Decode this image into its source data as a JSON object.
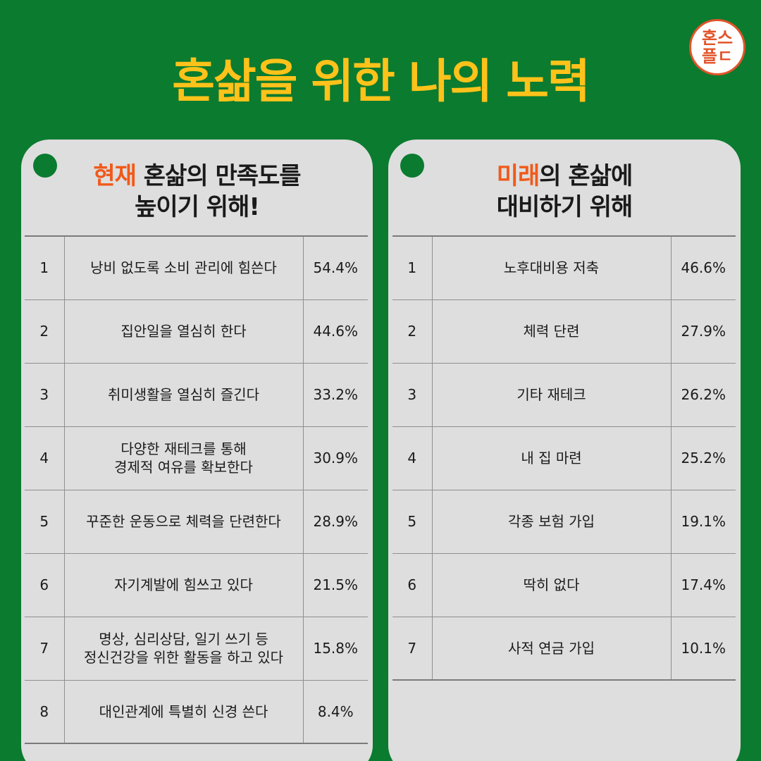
{
  "title": "혼삶을 위한 나의 노력",
  "logo": {
    "line1": "혼스",
    "line2": "플ㄷ"
  },
  "colors": {
    "background": "#0b7b2f",
    "title": "#ffc21a",
    "highlight": "#f05a1a",
    "panel": "#dedede"
  },
  "left_panel": {
    "title_highlight": "현재",
    "title_rest": " 혼삶의 만족도를",
    "title_line2": "높이기 위해!",
    "rows": [
      {
        "rank": "1",
        "item": "낭비 없도록 소비 관리에 힘쓴다",
        "item2": "",
        "pct": "54.4%"
      },
      {
        "rank": "2",
        "item": "집안일을 열심히 한다",
        "item2": "",
        "pct": "44.6%"
      },
      {
        "rank": "3",
        "item": "취미생활을 열심히 즐긴다",
        "item2": "",
        "pct": "33.2%"
      },
      {
        "rank": "4",
        "item": "다양한 재테크를 통해",
        "item2": "경제적 여유를 확보한다",
        "pct": "30.9%"
      },
      {
        "rank": "5",
        "item": "꾸준한 운동으로 체력을 단련한다",
        "item2": "",
        "pct": "28.9%"
      },
      {
        "rank": "6",
        "item": "자기계발에 힘쓰고 있다",
        "item2": "",
        "pct": "21.5%"
      },
      {
        "rank": "7",
        "item": "명상, 심리상담, 일기 쓰기 등",
        "item2": "정신건강을 위한 활동을 하고 있다",
        "pct": "15.8%"
      },
      {
        "rank": "8",
        "item": "대인관계에 특별히 신경 쓴다",
        "item2": "",
        "pct": "8.4%"
      }
    ]
  },
  "right_panel": {
    "title_highlight": "미래",
    "title_rest": "의 혼삶에",
    "title_line2": "대비하기 위해",
    "rows": [
      {
        "rank": "1",
        "item": "노후대비용 저축",
        "pct": "46.6%"
      },
      {
        "rank": "2",
        "item": "체력 단련",
        "pct": "27.9%"
      },
      {
        "rank": "3",
        "item": "기타 재테크",
        "pct": "26.2%"
      },
      {
        "rank": "4",
        "item": "내 집 마련",
        "pct": "25.2%"
      },
      {
        "rank": "5",
        "item": "각종 보험 가입",
        "pct": "19.1%"
      },
      {
        "rank": "6",
        "item": "딱히 없다",
        "pct": "17.4%"
      },
      {
        "rank": "7",
        "item": "사적 연금 가입",
        "pct": "10.1%"
      }
    ]
  }
}
